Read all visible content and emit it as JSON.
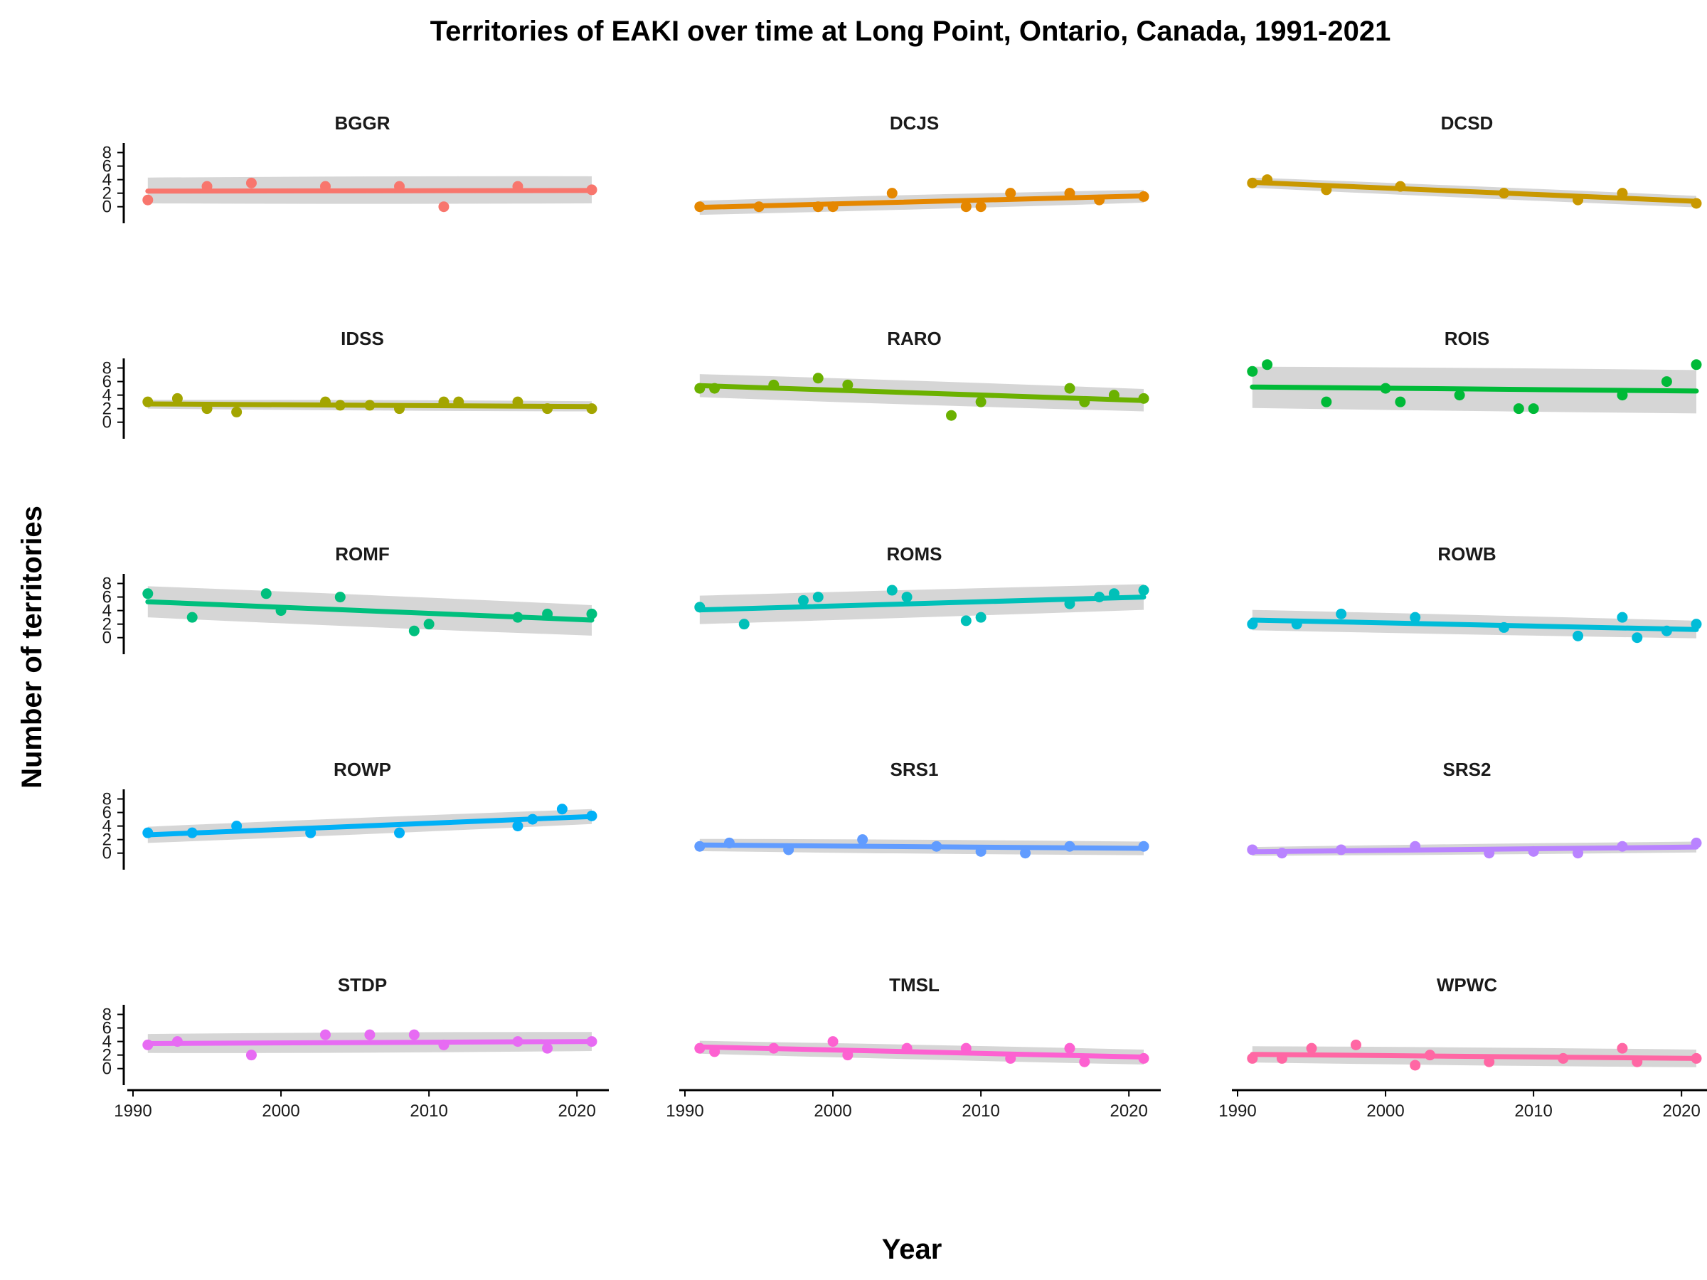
{
  "chart_data": {
    "type": "scatter",
    "title": "Territories of EAKI over time at Long Point, Ontario, Canada, 1991-2021",
    "xlabel": "Year",
    "ylabel": "Number of territories",
    "xlim": [
      1990,
      2021
    ],
    "ylim": [
      -1.5,
      9
    ],
    "x_ticks": [
      1990,
      2000,
      2010,
      2020
    ],
    "y_ticks": [
      0,
      2,
      4,
      6,
      8
    ],
    "grid": false,
    "legend": "none",
    "facets": [
      {
        "name": "BGGR",
        "color": "#F8766D",
        "points": [
          [
            1991,
            1
          ],
          [
            1995,
            3
          ],
          [
            1998,
            3.5
          ],
          [
            2003,
            3
          ],
          [
            2008,
            3
          ],
          [
            2011,
            0
          ],
          [
            2016,
            3
          ],
          [
            2021,
            2.5
          ]
        ],
        "fit": [
          2.3,
          2.4
        ],
        "band": [
          [
            0.5,
            4.3
          ],
          [
            0.5,
            4.5
          ]
        ]
      },
      {
        "name": "DCJS",
        "color": "#E58700",
        "points": [
          [
            1991,
            0
          ],
          [
            1995,
            0
          ],
          [
            1999,
            0
          ],
          [
            2000,
            0
          ],
          [
            2004,
            2
          ],
          [
            2009,
            0
          ],
          [
            2010,
            0
          ],
          [
            2012,
            2
          ],
          [
            2016,
            2
          ],
          [
            2018,
            1
          ],
          [
            2021,
            1.5
          ]
        ],
        "fit": [
          -0.1,
          1.6
        ],
        "band": [
          [
            -1.2,
            0.9
          ],
          [
            0.6,
            2.5
          ]
        ]
      },
      {
        "name": "DCSD",
        "color": "#C99800",
        "points": [
          [
            1991,
            3.5
          ],
          [
            1992,
            4
          ],
          [
            1996,
            2.5
          ],
          [
            2001,
            3
          ],
          [
            2008,
            2
          ],
          [
            2013,
            1
          ],
          [
            2016,
            2
          ],
          [
            2021,
            0.5
          ]
        ],
        "fit": [
          3.6,
          0.8
        ],
        "band": [
          [
            2.8,
            4.3
          ],
          [
            -0.1,
            1.6
          ]
        ]
      },
      {
        "name": "IDSS",
        "color": "#A3A500",
        "points": [
          [
            1991,
            3
          ],
          [
            1993,
            3.5
          ],
          [
            1995,
            2
          ],
          [
            1997,
            1.5
          ],
          [
            2003,
            3
          ],
          [
            2004,
            2.5
          ],
          [
            2006,
            2.5
          ],
          [
            2008,
            2
          ],
          [
            2011,
            3
          ],
          [
            2012,
            3
          ],
          [
            2016,
            3
          ],
          [
            2018,
            2
          ],
          [
            2021,
            2
          ]
        ],
        "fit": [
          2.7,
          2.3
        ],
        "band": [
          [
            2.0,
            3.3
          ],
          [
            1.6,
            3.1
          ]
        ]
      },
      {
        "name": "RARO",
        "color": "#6BB100",
        "points": [
          [
            1991,
            5
          ],
          [
            1992,
            5
          ],
          [
            1996,
            5.5
          ],
          [
            1999,
            6.5
          ],
          [
            2001,
            5.5
          ],
          [
            2008,
            1
          ],
          [
            2010,
            3
          ],
          [
            2016,
            5
          ],
          [
            2017,
            3
          ],
          [
            2019,
            4
          ],
          [
            2021,
            3.5
          ]
        ],
        "fit": [
          5.4,
          3.2
        ],
        "band": [
          [
            3.7,
            7.1
          ],
          [
            1.6,
            4.9
          ]
        ]
      },
      {
        "name": "ROIS",
        "color": "#00BA38",
        "points": [
          [
            1991,
            7.5
          ],
          [
            1992,
            8.5
          ],
          [
            1996,
            3
          ],
          [
            2000,
            5
          ],
          [
            2001,
            3
          ],
          [
            2005,
            4
          ],
          [
            2009,
            2
          ],
          [
            2010,
            2
          ],
          [
            2016,
            4
          ],
          [
            2019,
            6
          ],
          [
            2021,
            8.5
          ]
        ],
        "fit": [
          5.2,
          4.6
        ],
        "band": [
          [
            2.1,
            8.2
          ],
          [
            1.3,
            7.7
          ]
        ]
      },
      {
        "name": "ROMF",
        "color": "#00BF7D",
        "points": [
          [
            1991,
            6.5
          ],
          [
            1994,
            3
          ],
          [
            1999,
            6.5
          ],
          [
            2000,
            4
          ],
          [
            2004,
            6
          ],
          [
            2009,
            1
          ],
          [
            2010,
            2
          ],
          [
            2016,
            3
          ],
          [
            2018,
            3.5
          ],
          [
            2021,
            3.5
          ]
        ],
        "fit": [
          5.3,
          2.6
        ],
        "band": [
          [
            3.0,
            7.6
          ],
          [
            0.3,
            4.8
          ]
        ]
      },
      {
        "name": "ROMS",
        "color": "#00C0B8",
        "points": [
          [
            1991,
            4.5
          ],
          [
            1994,
            2
          ],
          [
            1998,
            5.5
          ],
          [
            1999,
            6
          ],
          [
            2004,
            7
          ],
          [
            2005,
            6
          ],
          [
            2009,
            2.5
          ],
          [
            2010,
            3
          ],
          [
            2016,
            5
          ],
          [
            2018,
            6
          ],
          [
            2019,
            6.5
          ],
          [
            2021,
            7
          ]
        ],
        "fit": [
          4.1,
          6.0
        ],
        "band": [
          [
            2.0,
            6.2
          ],
          [
            4.1,
            7.9
          ]
        ]
      },
      {
        "name": "ROWB",
        "color": "#00BCD8",
        "points": [
          [
            1991,
            2
          ],
          [
            1994,
            2
          ],
          [
            1997,
            3.5
          ],
          [
            2002,
            3
          ],
          [
            2008,
            1.5
          ],
          [
            2013,
            0.25
          ],
          [
            2016,
            3
          ],
          [
            2017,
            0
          ],
          [
            2019,
            1
          ],
          [
            2021,
            2
          ]
        ],
        "fit": [
          2.6,
          1.2
        ],
        "band": [
          [
            1.1,
            4.1
          ],
          [
            -0.1,
            2.5
          ]
        ]
      },
      {
        "name": "ROWP",
        "color": "#00B0F6",
        "points": [
          [
            1991,
            3
          ],
          [
            1994,
            3
          ],
          [
            1997,
            4
          ],
          [
            2002,
            3
          ],
          [
            2008,
            3
          ],
          [
            2016,
            4
          ],
          [
            2017,
            5
          ],
          [
            2019,
            6.5
          ],
          [
            2021,
            5.5
          ]
        ],
        "fit": [
          2.7,
          5.4
        ],
        "band": [
          [
            1.5,
            3.9
          ],
          [
            4.3,
            6.5
          ]
        ]
      },
      {
        "name": "SRS1",
        "color": "#619CFF",
        "points": [
          [
            1991,
            1
          ],
          [
            1993,
            1.5
          ],
          [
            1997,
            0.5
          ],
          [
            2002,
            2
          ],
          [
            2007,
            1
          ],
          [
            2010,
            0.25
          ],
          [
            2013,
            0
          ],
          [
            2016,
            1
          ],
          [
            2021,
            1
          ]
        ],
        "fit": [
          1.2,
          0.7
        ],
        "band": [
          [
            0.3,
            2.1
          ],
          [
            -0.3,
            1.7
          ]
        ]
      },
      {
        "name": "SRS2",
        "color": "#B983FF",
        "points": [
          [
            1991,
            0.5
          ],
          [
            1993,
            0
          ],
          [
            1997,
            0.5
          ],
          [
            2002,
            1
          ],
          [
            2007,
            0
          ],
          [
            2010,
            0.25
          ],
          [
            2013,
            0
          ],
          [
            2016,
            1
          ],
          [
            2021,
            1.5
          ]
        ],
        "fit": [
          0.2,
          0.9
        ],
        "band": [
          [
            -0.4,
            0.9
          ],
          [
            0.1,
            1.7
          ]
        ]
      },
      {
        "name": "STDP",
        "color": "#E76BF3",
        "points": [
          [
            1991,
            3.5
          ],
          [
            1993,
            4
          ],
          [
            1998,
            2
          ],
          [
            2003,
            5
          ],
          [
            2006,
            5
          ],
          [
            2009,
            5
          ],
          [
            2011,
            3.5
          ],
          [
            2016,
            4
          ],
          [
            2018,
            3
          ],
          [
            2021,
            4
          ]
        ],
        "fit": [
          3.7,
          4.0
        ],
        "band": [
          [
            2.3,
            5.1
          ],
          [
            2.6,
            5.4
          ]
        ]
      },
      {
        "name": "TMSL",
        "color": "#FD61D1",
        "points": [
          [
            1991,
            3
          ],
          [
            1992,
            2.5
          ],
          [
            1996,
            3
          ],
          [
            2000,
            4
          ],
          [
            2001,
            2
          ],
          [
            2005,
            3
          ],
          [
            2009,
            3
          ],
          [
            2012,
            1.5
          ],
          [
            2016,
            3
          ],
          [
            2017,
            1
          ],
          [
            2021,
            1.5
          ]
        ],
        "fit": [
          3.2,
          1.7
        ],
        "band": [
          [
            2.2,
            4.1
          ],
          [
            0.6,
            2.8
          ]
        ]
      },
      {
        "name": "WPWC",
        "color": "#FF67A4",
        "points": [
          [
            1991,
            1.5
          ],
          [
            1993,
            1.5
          ],
          [
            1995,
            3
          ],
          [
            1998,
            3.5
          ],
          [
            2002,
            0.5
          ],
          [
            2003,
            2
          ],
          [
            2007,
            1
          ],
          [
            2012,
            1.5
          ],
          [
            2016,
            3
          ],
          [
            2017,
            1
          ],
          [
            2021,
            1.5
          ]
        ],
        "fit": [
          2.1,
          1.5
        ],
        "band": [
          [
            0.9,
            3.3
          ],
          [
            0.2,
            2.8
          ]
        ]
      }
    ]
  }
}
